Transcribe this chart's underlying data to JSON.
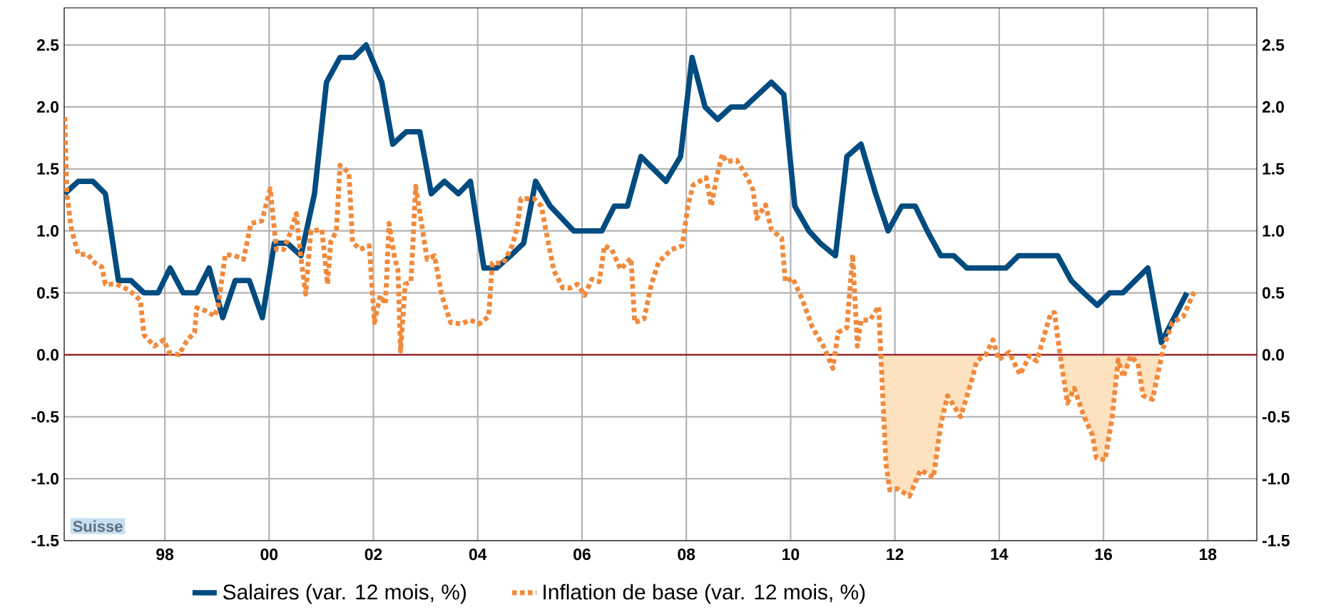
{
  "chart_data": {
    "type": "line",
    "xlim": [
      1996.07,
      2018.94
    ],
    "xticks": [
      {
        "value": 1998,
        "label": "98"
      },
      {
        "value": 2000,
        "label": "00"
      },
      {
        "value": 2002,
        "label": "02"
      },
      {
        "value": 2004,
        "label": "04"
      },
      {
        "value": 2006,
        "label": "06"
      },
      {
        "value": 2008,
        "label": "08"
      },
      {
        "value": 2010,
        "label": "10"
      },
      {
        "value": 2012,
        "label": "12"
      },
      {
        "value": 2014,
        "label": "14"
      },
      {
        "value": 2016,
        "label": "16"
      },
      {
        "value": 2018,
        "label": "18"
      }
    ],
    "ylim": [
      -1.5,
      2.8
    ],
    "yticks": [
      {
        "value": -1.5,
        "label": "-1.5"
      },
      {
        "value": -1,
        "label": "-1.0"
      },
      {
        "value": -0.5,
        "label": "-0.5"
      },
      {
        "value": 0,
        "label": "0.0"
      },
      {
        "value": 0.5,
        "label": "0.5"
      },
      {
        "value": 1,
        "label": "1.0"
      },
      {
        "value": 1.5,
        "label": "1.5"
      },
      {
        "value": 2,
        "label": "2.0"
      },
      {
        "value": 2.5,
        "label": "2.5"
      }
    ],
    "y2lim": [
      -1.5,
      2.8
    ],
    "y2ticks": [
      {
        "value": -1.5,
        "label": "-1.5"
      },
      {
        "value": -1,
        "label": "-1.0"
      },
      {
        "value": -0.5,
        "label": "-0.5"
      },
      {
        "value": 0,
        "label": "0.0"
      },
      {
        "value": 0.5,
        "label": "0.5"
      },
      {
        "value": 1,
        "label": "1.0"
      },
      {
        "value": 1.5,
        "label": "1.5"
      },
      {
        "value": 2,
        "label": "2.0"
      },
      {
        "value": 2.5,
        "label": "2.5"
      }
    ],
    "grid": true,
    "legend": "bottom",
    "marker": "none",
    "ref_lines": [
      {
        "axis": "y",
        "value": 0,
        "color": "#9e1b24"
      }
    ],
    "annotations": [
      "Suisse"
    ],
    "series": [
      {
        "type": "area",
        "color": "#fde2c0",
        "x": [
          2011.73,
          2011.83,
          2011.9,
          2012.04,
          2012.28,
          2012.49,
          2012.74,
          2012.88,
          2013.01,
          2013.26,
          2013.47,
          2013.57,
          2013.74
        ],
        "values": [
          -0.01,
          -0.88,
          -1.09,
          -1.08,
          -1.14,
          -0.93,
          -0.99,
          -0.56,
          -0.33,
          -0.5,
          -0.21,
          -0.05,
          0
        ]
      },
      {
        "type": "area",
        "color": "#fde2c0",
        "x": [
          2015.17,
          2015.31,
          2015.44,
          2015.62,
          2015.79,
          2015.86,
          2016.03,
          2016.17,
          2016.28,
          2016.38,
          2016.52,
          2016.66,
          2016.76,
          2016.94,
          2017.1
        ],
        "values": [
          -0.01,
          -0.39,
          -0.27,
          -0.49,
          -0.65,
          -0.83,
          -0.85,
          -0.49,
          -0.04,
          -0.18,
          -0.01,
          -0.07,
          -0.33,
          -0.36,
          0
        ]
      },
      {
        "name": "Salaires (var. 12 mois, %)",
        "color": "#004b7f",
        "line_style": "solid",
        "x": [
          1996.08,
          1996.34,
          1996.62,
          1996.86,
          1997.11,
          1997.35,
          1997.6,
          1997.87,
          1998.1,
          1998.35,
          1998.61,
          1998.85,
          1999.11,
          1999.35,
          1999.62,
          1999.87,
          2000.1,
          2000.35,
          2000.61,
          2000.87,
          2001.1,
          2001.36,
          2001.62,
          2001.86,
          2002.16,
          2002.37,
          2002.63,
          2002.89,
          2003.11,
          2003.36,
          2003.63,
          2003.86,
          2004.12,
          2004.36,
          2004.63,
          2004.88,
          2005.11,
          2005.39,
          2005.84,
          2006.38,
          2006.62,
          2006.87,
          2007.13,
          2007.61,
          2007.89,
          2008.11,
          2008.36,
          2008.6,
          2008.86,
          2009.12,
          2009.63,
          2009.87,
          2010.08,
          2010.35,
          2010.57,
          2010.86,
          2011.08,
          2011.35,
          2011.63,
          2011.87,
          2012.13,
          2012.39,
          2012.62,
          2012.88,
          2013.13,
          2013.38,
          2014.13,
          2014.37,
          2015.12,
          2015.38,
          2015.62,
          2015.88,
          2016.12,
          2016.37,
          2016.85,
          2017.11,
          2017.6
        ],
        "values": [
          1.3,
          1.4,
          1.4,
          1.3,
          0.6,
          0.6,
          0.5,
          0.5,
          0.7,
          0.5,
          0.5,
          0.7,
          0.3,
          0.6,
          0.6,
          0.3,
          0.9,
          0.9,
          0.8,
          1.3,
          2.2,
          2.4,
          2.4,
          2.5,
          2.2,
          1.7,
          1.8,
          1.8,
          1.3,
          1.4,
          1.3,
          1.4,
          0.7,
          0.7,
          0.8,
          0.9,
          1.4,
          1.2,
          1.0,
          1.0,
          1.2,
          1.2,
          1.6,
          1.4,
          1.6,
          2.4,
          2.0,
          1.9,
          2.0,
          2.0,
          2.2,
          2.1,
          1.2,
          1.0,
          0.9,
          0.8,
          1.6,
          1.7,
          1.3,
          1.0,
          1.2,
          1.2,
          1.0,
          0.8,
          0.8,
          0.7,
          0.7,
          0.8,
          0.8,
          0.6,
          0.5,
          0.4,
          0.5,
          0.5,
          0.7,
          0.1,
          0.5
        ]
      },
      {
        "name": "Inflation de base (var. 12 mois, %)",
        "color": "#f08a3c",
        "line_style": "dotted",
        "x": [
          1996.08,
          1996.12,
          1996.2,
          1996.34,
          1996.52,
          1996.66,
          1996.79,
          1996.86,
          1997.07,
          1997.32,
          1997.53,
          1997.6,
          1997.8,
          1997.98,
          1998.08,
          1998.27,
          1998.43,
          1998.57,
          1998.61,
          1998.82,
          1998.95,
          1999.02,
          1999.16,
          1999.34,
          1999.51,
          1999.65,
          1999.86,
          2000.02,
          2000.14,
          2000.28,
          2000.42,
          2000.52,
          2000.59,
          2000.7,
          2000.8,
          2001.01,
          2001.12,
          2001.18,
          2001.29,
          2001.36,
          2001.53,
          2001.6,
          2001.74,
          2001.92,
          2002.02,
          2002.13,
          2002.23,
          2002.3,
          2002.4,
          2002.47,
          2002.52,
          2002.61,
          2002.72,
          2002.81,
          2003.03,
          2003.17,
          2003.31,
          2003.48,
          2003.69,
          2003.86,
          2004.03,
          2004.21,
          2004.28,
          2004.49,
          2004.66,
          2004.76,
          2004.83,
          2005.08,
          2005.22,
          2005.35,
          2005.46,
          2005.63,
          2005.77,
          2005.91,
          2006.05,
          2006.19,
          2006.33,
          2006.43,
          2006.57,
          2006.74,
          2006.94,
          2007.01,
          2007.19,
          2007.33,
          2007.47,
          2007.72,
          2007.92,
          2008.03,
          2008.13,
          2008.38,
          2008.48,
          2008.58,
          2008.69,
          2008.76,
          2008.97,
          2009.17,
          2009.28,
          2009.35,
          2009.52,
          2009.63,
          2009.83,
          2009.9,
          2010.04,
          2010.22,
          2010.42,
          2010.63,
          2010.81,
          2010.91,
          2011.08,
          2011.19,
          2011.28,
          2011.35,
          2011.52,
          2011.69,
          2011.73,
          2011.83,
          2011.9,
          2012.04,
          2012.28,
          2012.49,
          2012.74,
          2012.88,
          2013.01,
          2013.26,
          2013.47,
          2013.57,
          2013.74,
          2013.88,
          2013.99,
          2014.19,
          2014.4,
          2014.58,
          2014.72,
          2014.99,
          2015.06,
          2015.17,
          2015.31,
          2015.44,
          2015.62,
          2015.79,
          2015.86,
          2016.03,
          2016.17,
          2016.28,
          2016.38,
          2016.52,
          2016.66,
          2016.76,
          2016.94,
          2017.15,
          2017.32,
          2017.53,
          2017.74
        ],
        "values": [
          1.92,
          1.31,
          1.03,
          0.81,
          0.81,
          0.74,
          0.71,
          0.57,
          0.57,
          0.52,
          0.44,
          0.16,
          0.07,
          0.12,
          0.02,
          0.0,
          0.12,
          0.18,
          0.38,
          0.35,
          0.31,
          0.39,
          0.81,
          0.8,
          0.77,
          1.06,
          1.08,
          1.34,
          0.85,
          0.85,
          1.0,
          1.14,
          0.85,
          0.49,
          1.0,
          1.01,
          0.57,
          0.91,
          1.0,
          1.53,
          1.47,
          0.91,
          0.85,
          0.88,
          0.26,
          0.48,
          0.41,
          1.06,
          0.8,
          0.68,
          0.03,
          0.57,
          0.59,
          1.36,
          0.77,
          0.8,
          0.48,
          0.26,
          0.25,
          0.28,
          0.25,
          0.31,
          0.74,
          0.74,
          0.88,
          1.03,
          1.26,
          1.26,
          1.2,
          0.91,
          0.68,
          0.54,
          0.54,
          0.57,
          0.48,
          0.61,
          0.59,
          0.88,
          0.85,
          0.69,
          0.78,
          0.26,
          0.29,
          0.57,
          0.75,
          0.85,
          0.88,
          1.2,
          1.37,
          1.43,
          1.2,
          1.43,
          1.62,
          1.56,
          1.57,
          1.43,
          1.33,
          1.1,
          1.21,
          1.01,
          0.94,
          0.59,
          0.62,
          0.45,
          0.22,
          0.07,
          -0.11,
          0.18,
          0.22,
          0.81,
          0.07,
          0.28,
          0.28,
          0.39,
          -0.01,
          -0.88,
          -1.09,
          -1.08,
          -1.14,
          -0.93,
          -0.99,
          -0.56,
          -0.33,
          -0.5,
          -0.21,
          -0.05,
          0.0,
          0.12,
          -0.04,
          0.02,
          -0.16,
          -0.01,
          -0.05,
          0.34,
          0.34,
          -0.01,
          -0.39,
          -0.27,
          -0.49,
          -0.65,
          -0.83,
          -0.85,
          -0.49,
          -0.04,
          -0.18,
          -0.01,
          -0.07,
          -0.33,
          -0.36,
          0.06,
          0.26,
          0.31,
          0.51
        ]
      }
    ]
  }
}
